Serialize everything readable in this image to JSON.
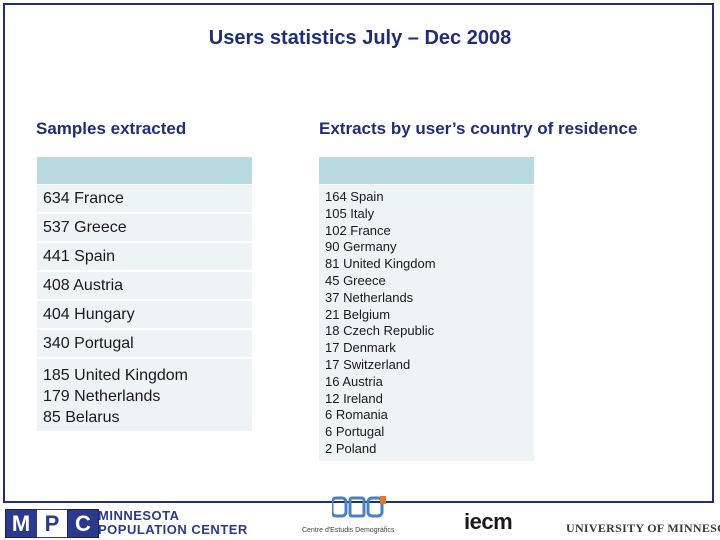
{
  "title": "Users statistics July – Dec 2008",
  "left": {
    "heading": "Samples extracted",
    "rows": [
      {
        "lines": [
          "634 France"
        ]
      },
      {
        "lines": [
          "537 Greece"
        ]
      },
      {
        "lines": [
          "441 Spain"
        ]
      },
      {
        "lines": [
          "408 Austria"
        ]
      },
      {
        "lines": [
          "404 Hungary"
        ]
      },
      {
        "lines": [
          "340 Portugal"
        ]
      },
      {
        "lines": [
          "185 United Kingdom",
          "179 Netherlands",
          "85 Belarus"
        ]
      }
    ]
  },
  "right": {
    "heading": "Extracts by user’s country of residence",
    "lines": [
      "164 Spain",
      "105 Italy",
      "102 France",
      "90 Germany",
      "81 United Kingdom",
      "45 Greece",
      "37 Netherlands",
      "21 Belgium",
      "18 Czech Republic",
      "17 Denmark",
      "17 Switzerland",
      "16 Austria",
      "12 Ireland",
      "6 Romania",
      "6 Portugal",
      "2 Poland"
    ]
  },
  "footer": {
    "mpc_letters": [
      "M",
      "P",
      "C"
    ],
    "mpc_line1": "MINNESOTA",
    "mpc_line2": "POPULATION CENTER",
    "ced_text": "Centre d'Estudis Demogràfics",
    "iecm": "iecm",
    "umn": "UNIVERSITY OF MINNESOTA",
    "colors": {
      "navy": "#2c3a8c",
      "teal_header": "#b9dade",
      "row_bg": "#eef3f5"
    }
  }
}
